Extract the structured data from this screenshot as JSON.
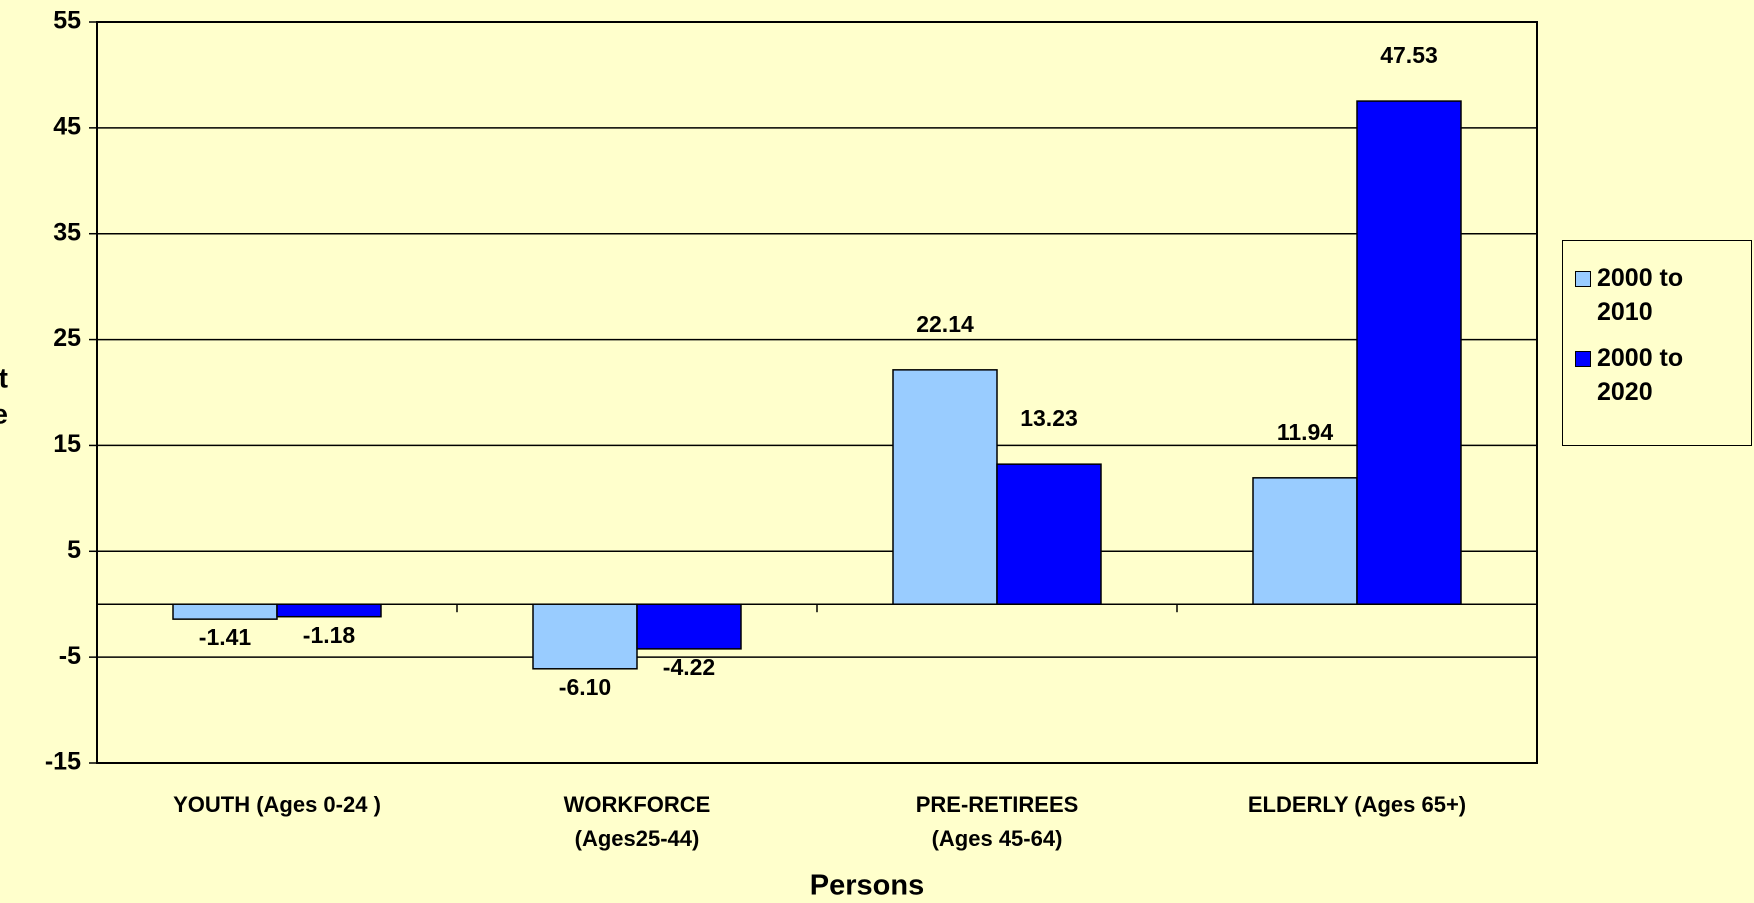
{
  "chart_data": {
    "type": "bar",
    "y_label": [
      "t",
      "e"
    ],
    "x_label": "Persons",
    "categories": [
      [
        "YOUTH (Ages 0-24 )"
      ],
      [
        "WORKFORCE",
        "(Ages25-44)"
      ],
      [
        "PRE-RETIREES",
        "(Ages 45-64)"
      ],
      [
        "ELDERLY (Ages 65+)"
      ]
    ],
    "series": [
      {
        "name": "2000 to 2010",
        "color": "#99ccff",
        "values": [
          -1.41,
          -6.1,
          22.14,
          11.94
        ],
        "value_labels": [
          "-1.41",
          "-6.10",
          "22.14",
          "11.94"
        ]
      },
      {
        "name": "2000 to 2020",
        "color": "#0000ff",
        "values": [
          -1.18,
          -4.22,
          13.23,
          47.53
        ],
        "value_labels": [
          "-1.18",
          "-4.22",
          "13.23",
          "47.53"
        ]
      }
    ],
    "ylim": [
      -15,
      55
    ],
    "yticks": [
      -15,
      -5,
      5,
      15,
      25,
      35,
      45,
      55
    ],
    "grid": true,
    "legend": "right"
  }
}
